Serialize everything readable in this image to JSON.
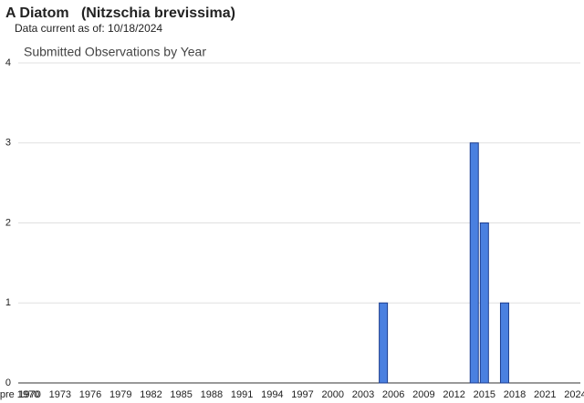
{
  "title": "A Diatom   (Nitzschia brevissima)",
  "subtitle": "Data current as of: 10/18/2024",
  "chart_data": {
    "type": "bar",
    "title": "Submitted Observations by Year",
    "categories": [
      "pre 1970",
      "1970",
      null,
      null,
      "1973",
      null,
      null,
      "1976",
      null,
      null,
      "1979",
      null,
      null,
      "1982",
      null,
      null,
      "1985",
      null,
      null,
      "1988",
      null,
      null,
      "1991",
      null,
      null,
      "1994",
      null,
      null,
      "1997",
      null,
      null,
      "2000",
      null,
      null,
      "2003",
      null,
      null,
      "2006",
      null,
      null,
      "2009",
      null,
      null,
      "2012",
      null,
      null,
      "2015",
      null,
      null,
      "2018",
      null,
      null,
      "2021",
      null,
      null,
      "2024"
    ],
    "values": [
      0,
      0,
      0,
      0,
      0,
      0,
      0,
      0,
      0,
      0,
      0,
      0,
      0,
      0,
      0,
      0,
      0,
      0,
      0,
      0,
      0,
      0,
      0,
      0,
      0,
      0,
      0,
      0,
      0,
      0,
      0,
      0,
      0,
      0,
      0,
      0,
      1,
      0,
      0,
      0,
      0,
      0,
      0,
      0,
      0,
      3,
      2,
      0,
      1,
      0,
      0,
      0,
      0,
      0,
      0,
      0
    ],
    "color": "#4a80e0",
    "ylim": [
      0,
      4
    ],
    "yticks": [
      0,
      1,
      2,
      3,
      4
    ],
    "grid": true
  }
}
